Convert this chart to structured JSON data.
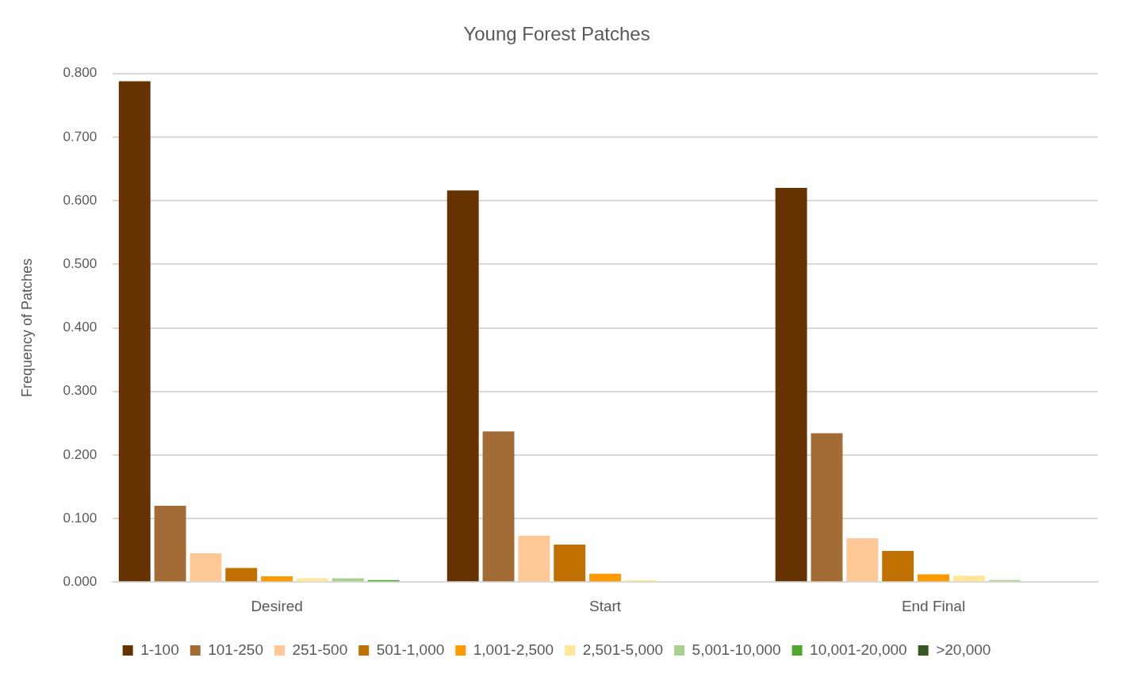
{
  "chart_data": {
    "type": "bar",
    "title": "Young Forest Patches",
    "ylabel": "Frequency of Patches",
    "categories": [
      "Desired",
      "Start",
      "End Final"
    ],
    "series": [
      {
        "name": "1-100",
        "color": "#663300",
        "values": [
          0.788,
          0.616,
          0.62
        ]
      },
      {
        "name": "101-250",
        "color": "#a36b36",
        "values": [
          0.12,
          0.237,
          0.234
        ]
      },
      {
        "name": "251-500",
        "color": "#ffc896",
        "values": [
          0.045,
          0.073,
          0.069
        ]
      },
      {
        "name": "501-1,000",
        "color": "#c07000",
        "values": [
          0.022,
          0.059,
          0.049
        ]
      },
      {
        "name": "1,001-2,500",
        "color": "#ff9900",
        "values": [
          0.009,
          0.013,
          0.012
        ]
      },
      {
        "name": "2,501-5,000",
        "color": "#ffe699",
        "values": [
          0.006,
          0.003,
          0.01
        ]
      },
      {
        "name": "5,001-10,000",
        "color": "#a9d18e",
        "values": [
          0.006,
          0,
          0.003
        ]
      },
      {
        "name": "10,001-20,000",
        "color": "#4ea72e",
        "values": [
          0.003,
          0,
          0
        ]
      },
      {
        "name": ">20,000",
        "color": "#375623",
        "values": [
          0,
          0,
          0
        ]
      }
    ],
    "ylim": [
      0,
      0.8
    ],
    "yticks": [
      {
        "value": 0,
        "label": "0.000"
      },
      {
        "value": 0.1,
        "label": "0.100"
      },
      {
        "value": 0.2,
        "label": "0.200"
      },
      {
        "value": 0.3,
        "label": "0.300"
      },
      {
        "value": 0.4,
        "label": "0.400"
      },
      {
        "value": 0.5,
        "label": "0.500"
      },
      {
        "value": 0.6,
        "label": "0.600"
      },
      {
        "value": 0.7,
        "label": "0.700"
      },
      {
        "value": 0.8,
        "label": "0.800"
      }
    ],
    "grid": "y",
    "legend": "bottom"
  }
}
